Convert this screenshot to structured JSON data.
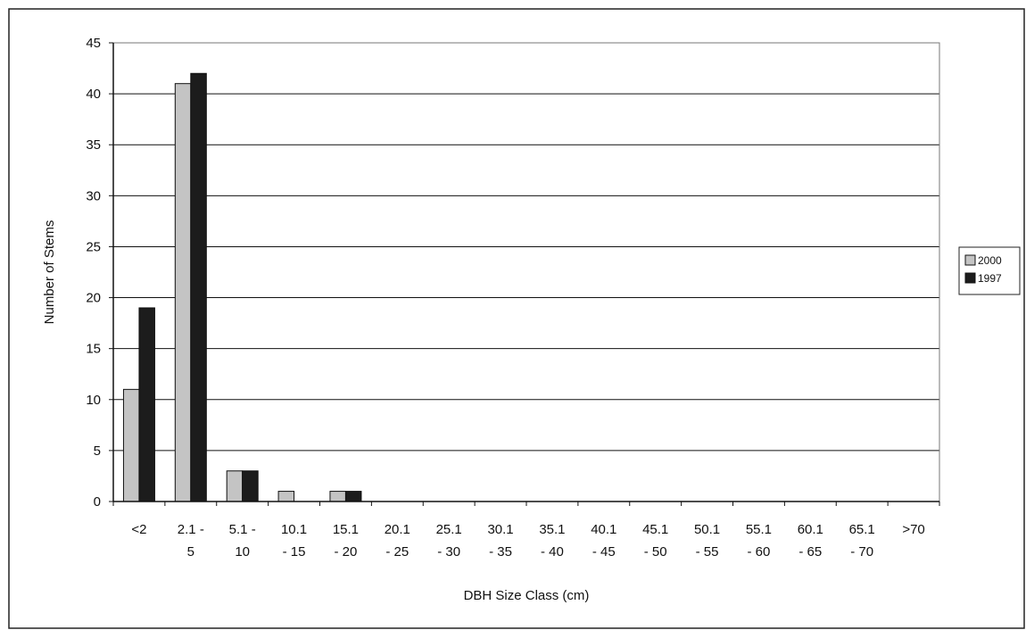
{
  "chart_data": {
    "type": "bar",
    "title": "",
    "xlabel": "DBH Size Class (cm)",
    "ylabel": "Number of Stems",
    "ylim": [
      0,
      45
    ],
    "y_ticks": [
      0,
      5,
      10,
      15,
      20,
      25,
      30,
      35,
      40,
      45
    ],
    "grid": true,
    "legend_position": "right",
    "categories": [
      [
        "<2"
      ],
      [
        "2.1 -",
        "5"
      ],
      [
        "5.1 -",
        "10"
      ],
      [
        "10.1",
        "- 15"
      ],
      [
        "15.1",
        "- 20"
      ],
      [
        "20.1",
        "- 25"
      ],
      [
        "25.1",
        "- 30"
      ],
      [
        "30.1",
        "- 35"
      ],
      [
        "35.1",
        "- 40"
      ],
      [
        "40.1",
        "- 45"
      ],
      [
        "45.1",
        "- 50"
      ],
      [
        "50.1",
        "- 55"
      ],
      [
        "55.1",
        "- 60"
      ],
      [
        "60.1",
        "- 65"
      ],
      [
        "65.1",
        "- 70"
      ],
      [
        ">70"
      ]
    ],
    "series": [
      {
        "name": "2000",
        "color": "#c4c4c4",
        "values": [
          11,
          41,
          3,
          1,
          1,
          0,
          0,
          0,
          0,
          0,
          0,
          0,
          0,
          0,
          0,
          0
        ]
      },
      {
        "name": "1997",
        "color": "#1c1c1c",
        "values": [
          19,
          42,
          3,
          0,
          1,
          0,
          0,
          0,
          0,
          0,
          0,
          0,
          0,
          0,
          0,
          0
        ]
      }
    ]
  }
}
